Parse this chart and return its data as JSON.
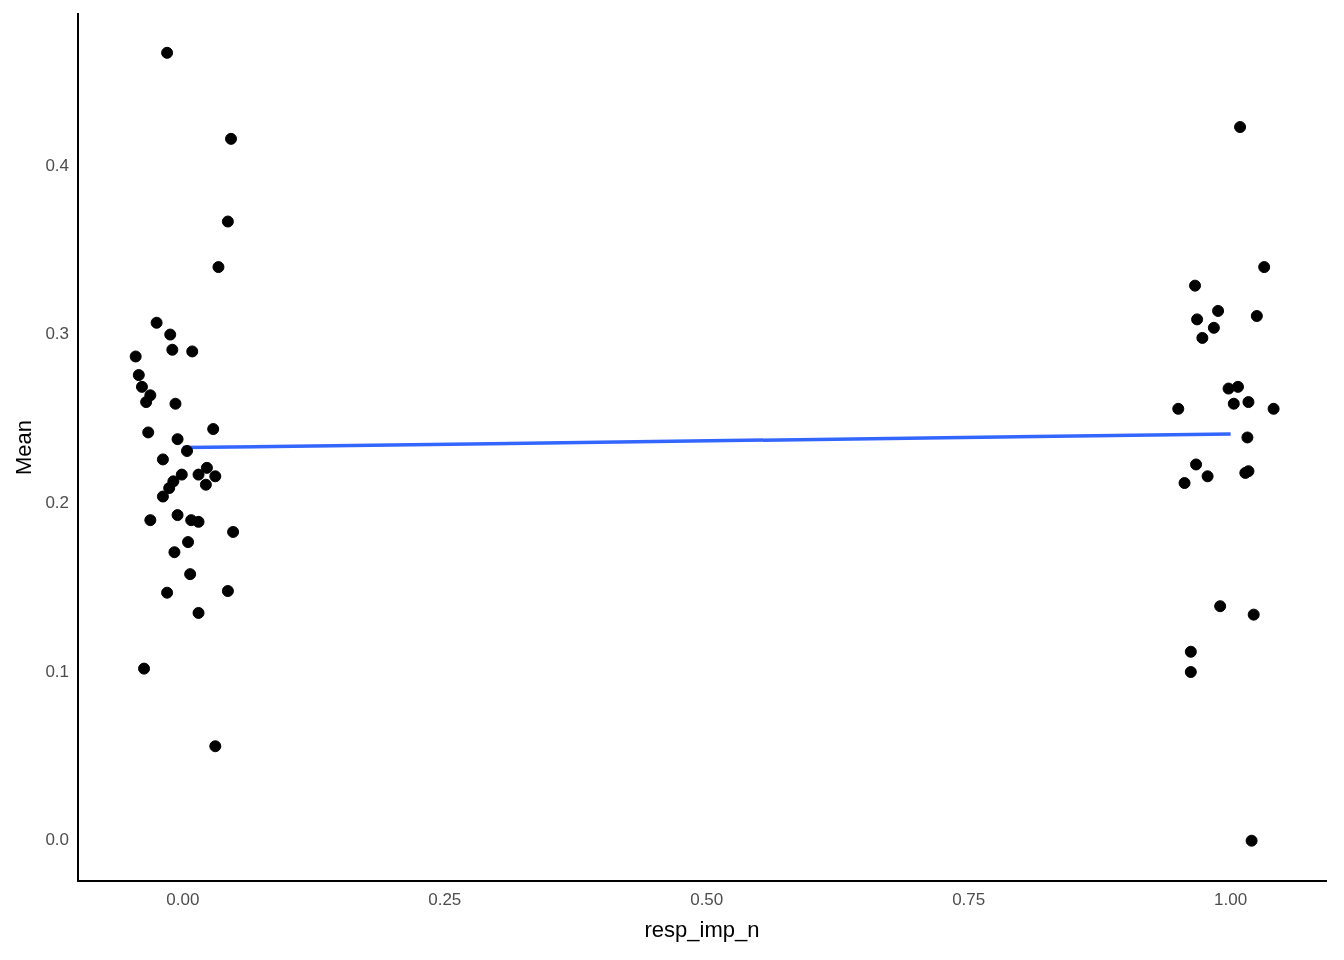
{
  "chart_data": {
    "type": "scatter",
    "xlabel": "resp_imp_n",
    "ylabel": "Mean",
    "xlim": [
      -0.1,
      1.091
    ],
    "ylim": [
      -0.024,
      0.49
    ],
    "xticks": [
      {
        "value": 0,
        "label": "0.00"
      },
      {
        "value": 0.25,
        "label": "0.25"
      },
      {
        "value": 0.5,
        "label": "0.50"
      },
      {
        "value": 0.75,
        "label": "0.75"
      },
      {
        "value": 1,
        "label": "1.00"
      }
    ],
    "yticks": [
      {
        "value": 0,
        "label": "0.0"
      },
      {
        "value": 0.1,
        "label": "0.1"
      },
      {
        "value": 0.2,
        "label": "0.2"
      },
      {
        "value": 0.3,
        "label": "0.3"
      },
      {
        "value": 0.4,
        "label": "0.4"
      }
    ],
    "grid": false,
    "legend": false,
    "series": [
      {
        "marker": "circle",
        "color": "#000000",
        "x": [
          -0.015,
          0.046,
          0.043,
          0.034,
          -0.025,
          -0.012,
          -0.045,
          -0.01,
          0.009,
          -0.042,
          -0.039,
          -0.031,
          -0.035,
          -0.007,
          -0.033,
          0.029,
          -0.005,
          0.004,
          -0.019,
          0.023,
          -0.001,
          0.015,
          0.031,
          -0.009,
          -0.013,
          0.022,
          -0.019,
          -0.005,
          -0.031,
          0.008,
          0.015,
          0.048,
          0.005,
          -0.008,
          0.007,
          -0.015,
          0.043,
          0.015,
          -0.037,
          0.031,
          1.009,
          1.032,
          0.966,
          0.988,
          0.968,
          1.025,
          0.984,
          0.973,
          0.95,
          0.998,
          1.007,
          1.003,
          1.017,
          1.041,
          1.016,
          0.967,
          0.978,
          0.956,
          1.014,
          1.017,
          0.99,
          1.022,
          0.962,
          0.962,
          1.02
        ],
        "values": [
          0.467,
          0.416,
          0.367,
          0.34,
          0.307,
          0.3,
          0.287,
          0.291,
          0.29,
          0.276,
          0.269,
          0.264,
          0.26,
          0.259,
          0.242,
          0.244,
          0.238,
          0.231,
          0.226,
          0.221,
          0.217,
          0.217,
          0.216,
          0.213,
          0.209,
          0.211,
          0.204,
          0.193,
          0.19,
          0.19,
          0.189,
          0.183,
          0.177,
          0.171,
          0.158,
          0.147,
          0.148,
          0.135,
          0.102,
          0.056,
          0.423,
          0.34,
          0.329,
          0.314,
          0.309,
          0.311,
          0.304,
          0.298,
          0.256,
          0.268,
          0.269,
          0.259,
          0.26,
          0.256,
          0.239,
          0.223,
          0.216,
          0.212,
          0.218,
          0.219,
          0.139,
          0.134,
          0.112,
          0.1,
          0.0
        ]
      },
      {
        "type": "line",
        "marker": "none",
        "color": "#3366ff",
        "x": [
          0,
          1
        ],
        "values": [
          0.233,
          0.241
        ]
      }
    ]
  }
}
